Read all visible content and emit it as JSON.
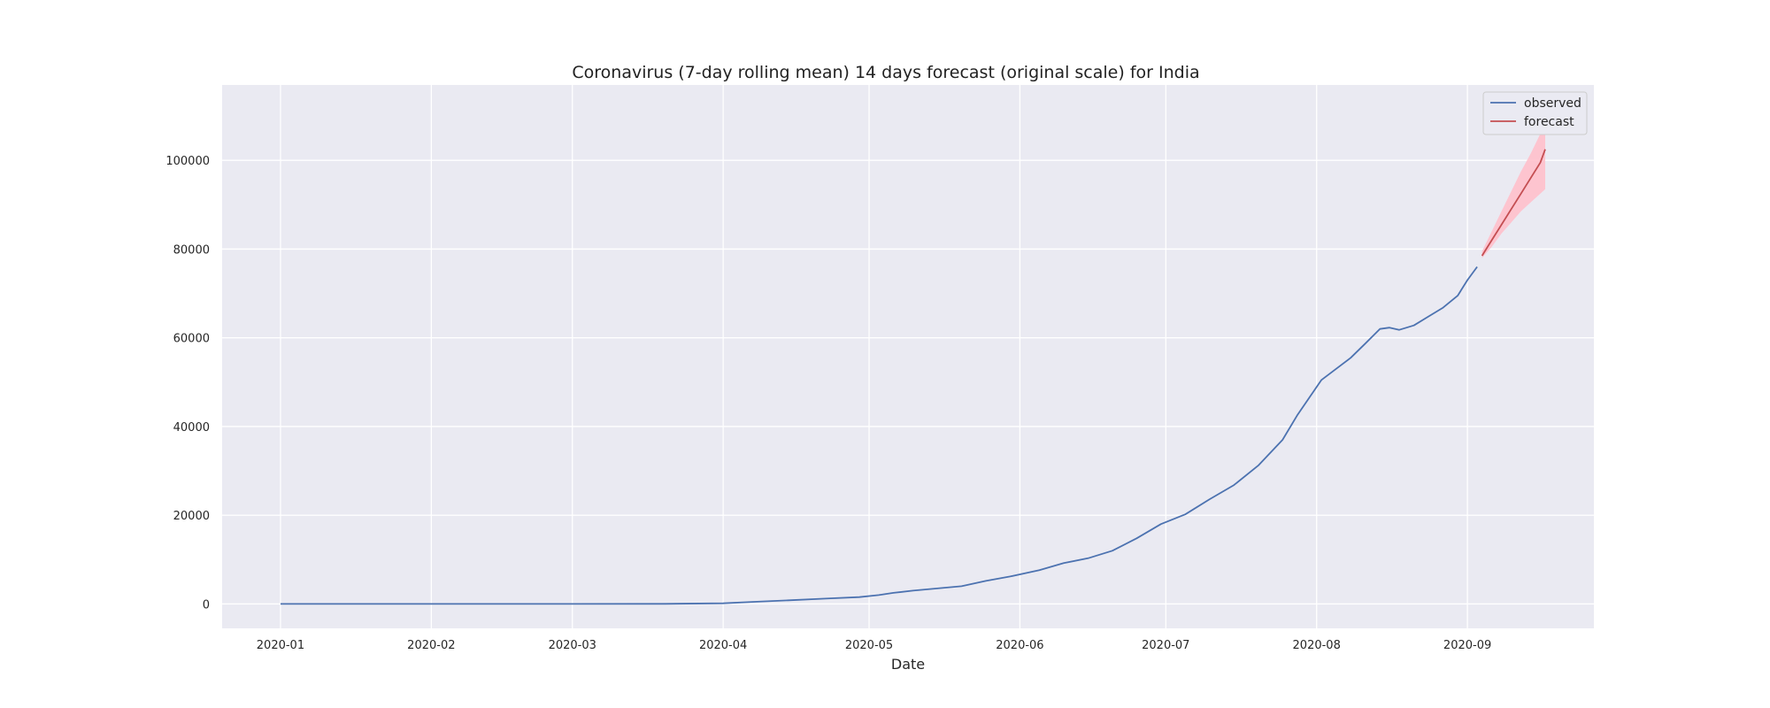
{
  "chart_data": {
    "type": "line",
    "title": "Coronavirus (7-day rolling mean) 14 days forecast (original scale) for India",
    "xlabel": "Date",
    "ylabel": "",
    "x_ticks": [
      "2020-01",
      "2020-02",
      "2020-03",
      "2020-04",
      "2020-05",
      "2020-06",
      "2020-07",
      "2020-08",
      "2020-09"
    ],
    "x_range": [
      "2019-12-20",
      "2020-09-27"
    ],
    "y_ticks": [
      0,
      20000,
      40000,
      60000,
      80000,
      100000
    ],
    "y_tick_labels": [
      "0",
      "20000",
      "40000",
      "60000",
      "80000",
      "100000"
    ],
    "ylim": [
      -5500,
      117000
    ],
    "grid": true,
    "legend": "top-right",
    "series": [
      {
        "name": "observed",
        "color": "#4c72b0",
        "points": [
          [
            "2020-01-01",
            0
          ],
          [
            "2020-02-01",
            0
          ],
          [
            "2020-03-01",
            0
          ],
          [
            "2020-03-20",
            20
          ],
          [
            "2020-04-01",
            150
          ],
          [
            "2020-04-08",
            500
          ],
          [
            "2020-04-15",
            850
          ],
          [
            "2020-04-22",
            1200
          ],
          [
            "2020-04-29",
            1550
          ],
          [
            "2020-05-03",
            2000
          ],
          [
            "2020-05-06",
            2500
          ],
          [
            "2020-05-10",
            3000
          ],
          [
            "2020-05-14",
            3400
          ],
          [
            "2020-05-20",
            4000
          ],
          [
            "2020-05-25",
            5200
          ],
          [
            "2020-05-30",
            6200
          ],
          [
            "2020-06-05",
            7600
          ],
          [
            "2020-06-10",
            9200
          ],
          [
            "2020-06-15",
            10300
          ],
          [
            "2020-06-20",
            12000
          ],
          [
            "2020-06-25",
            14800
          ],
          [
            "2020-06-30",
            18000
          ],
          [
            "2020-07-05",
            20200
          ],
          [
            "2020-07-10",
            23600
          ],
          [
            "2020-07-15",
            26800
          ],
          [
            "2020-07-20",
            31200
          ],
          [
            "2020-07-25",
            37000
          ],
          [
            "2020-07-28",
            42500
          ],
          [
            "2020-08-02",
            50500
          ],
          [
            "2020-08-05",
            53000
          ],
          [
            "2020-08-08",
            55500
          ],
          [
            "2020-08-11",
            58700
          ],
          [
            "2020-08-14",
            62000
          ],
          [
            "2020-08-16",
            62300
          ],
          [
            "2020-08-18",
            61800
          ],
          [
            "2020-08-21",
            62800
          ],
          [
            "2020-08-24",
            64800
          ],
          [
            "2020-08-27",
            66800
          ],
          [
            "2020-08-30",
            69500
          ],
          [
            "2020-09-01",
            73000
          ],
          [
            "2020-09-03",
            76000
          ]
        ]
      },
      {
        "name": "forecast",
        "color": "#c44e52",
        "points": [
          [
            "2020-09-04",
            78500
          ],
          [
            "2020-09-06",
            82000
          ],
          [
            "2020-09-08",
            85500
          ],
          [
            "2020-09-10",
            89000
          ],
          [
            "2020-09-12",
            92500
          ],
          [
            "2020-09-14",
            96000
          ],
          [
            "2020-09-16",
            99500
          ],
          [
            "2020-09-17",
            102500
          ]
        ],
        "interval": {
          "color": "#ffc0cb",
          "points": [
            [
              "2020-09-04",
              78000,
              79500
            ],
            [
              "2020-09-06",
              80500,
              84000
            ],
            [
              "2020-09-08",
              83500,
              88500
            ],
            [
              "2020-09-10",
              86000,
              93000
            ],
            [
              "2020-09-12",
              88500,
              97500
            ],
            [
              "2020-09-14",
              90500,
              101500
            ],
            [
              "2020-09-16",
              92500,
              106000
            ],
            [
              "2020-09-17",
              93500,
              108000
            ]
          ]
        }
      }
    ],
    "colors": {
      "plot_background": "#eaeaf2",
      "grid": "#ffffff",
      "legend_background": "#eaeaf2",
      "legend_border": "#cccccc"
    }
  }
}
